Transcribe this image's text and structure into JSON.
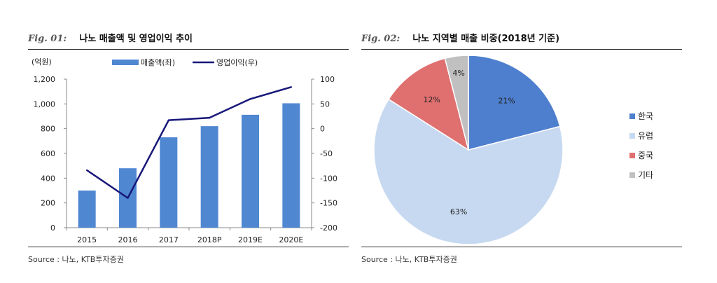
{
  "fig1": {
    "fig_no": "Fig. 01:",
    "title": "나노 매출액 및 영업이익 추이",
    "source": "Source : 나노, KTB투자증권"
  },
  "fig2": {
    "fig_no": "Fig. 02:",
    "title": "나노 지역별 매출 비중(2018년 기준)",
    "source": "Source : 나노, KTB투자증권"
  },
  "colors": {
    "bar": "#4f87d1",
    "line": "#17177a",
    "korea": "#4e7fce",
    "europe": "#c7d9f0",
    "china": "#e07070",
    "other": "#c0c0c0"
  },
  "chart_data": [
    {
      "type": "bar",
      "unit_label": "(억원)",
      "categories": [
        "2015",
        "2016",
        "2017",
        "2018P",
        "2019E",
        "2020E"
      ],
      "series": [
        {
          "name": "매출액(좌)",
          "type": "bar",
          "axis": "left",
          "values": [
            300,
            480,
            730,
            820,
            912,
            1005
          ]
        },
        {
          "name": "영업이익(우)",
          "type": "line",
          "axis": "right",
          "values": [
            -84,
            -140,
            17,
            22,
            60,
            84
          ]
        }
      ],
      "ylim_left": [
        0,
        1200
      ],
      "yticks_left": [
        "0",
        "200",
        "400",
        "600",
        "800",
        "1,000",
        "1,200"
      ],
      "ylim_right": [
        -200,
        100
      ],
      "yticks_right": [
        "-200",
        "-150",
        "-100",
        "-50",
        "0",
        "50",
        "100"
      ],
      "legend_position": "top"
    },
    {
      "type": "pie",
      "slices": [
        {
          "name": "한국",
          "value": 21,
          "label": "21%"
        },
        {
          "name": "유럽",
          "value": 63,
          "label": "63%"
        },
        {
          "name": "중국",
          "value": 12,
          "label": "12%"
        },
        {
          "name": "기타",
          "value": 4,
          "label": "4%"
        }
      ],
      "legend_position": "right"
    }
  ]
}
